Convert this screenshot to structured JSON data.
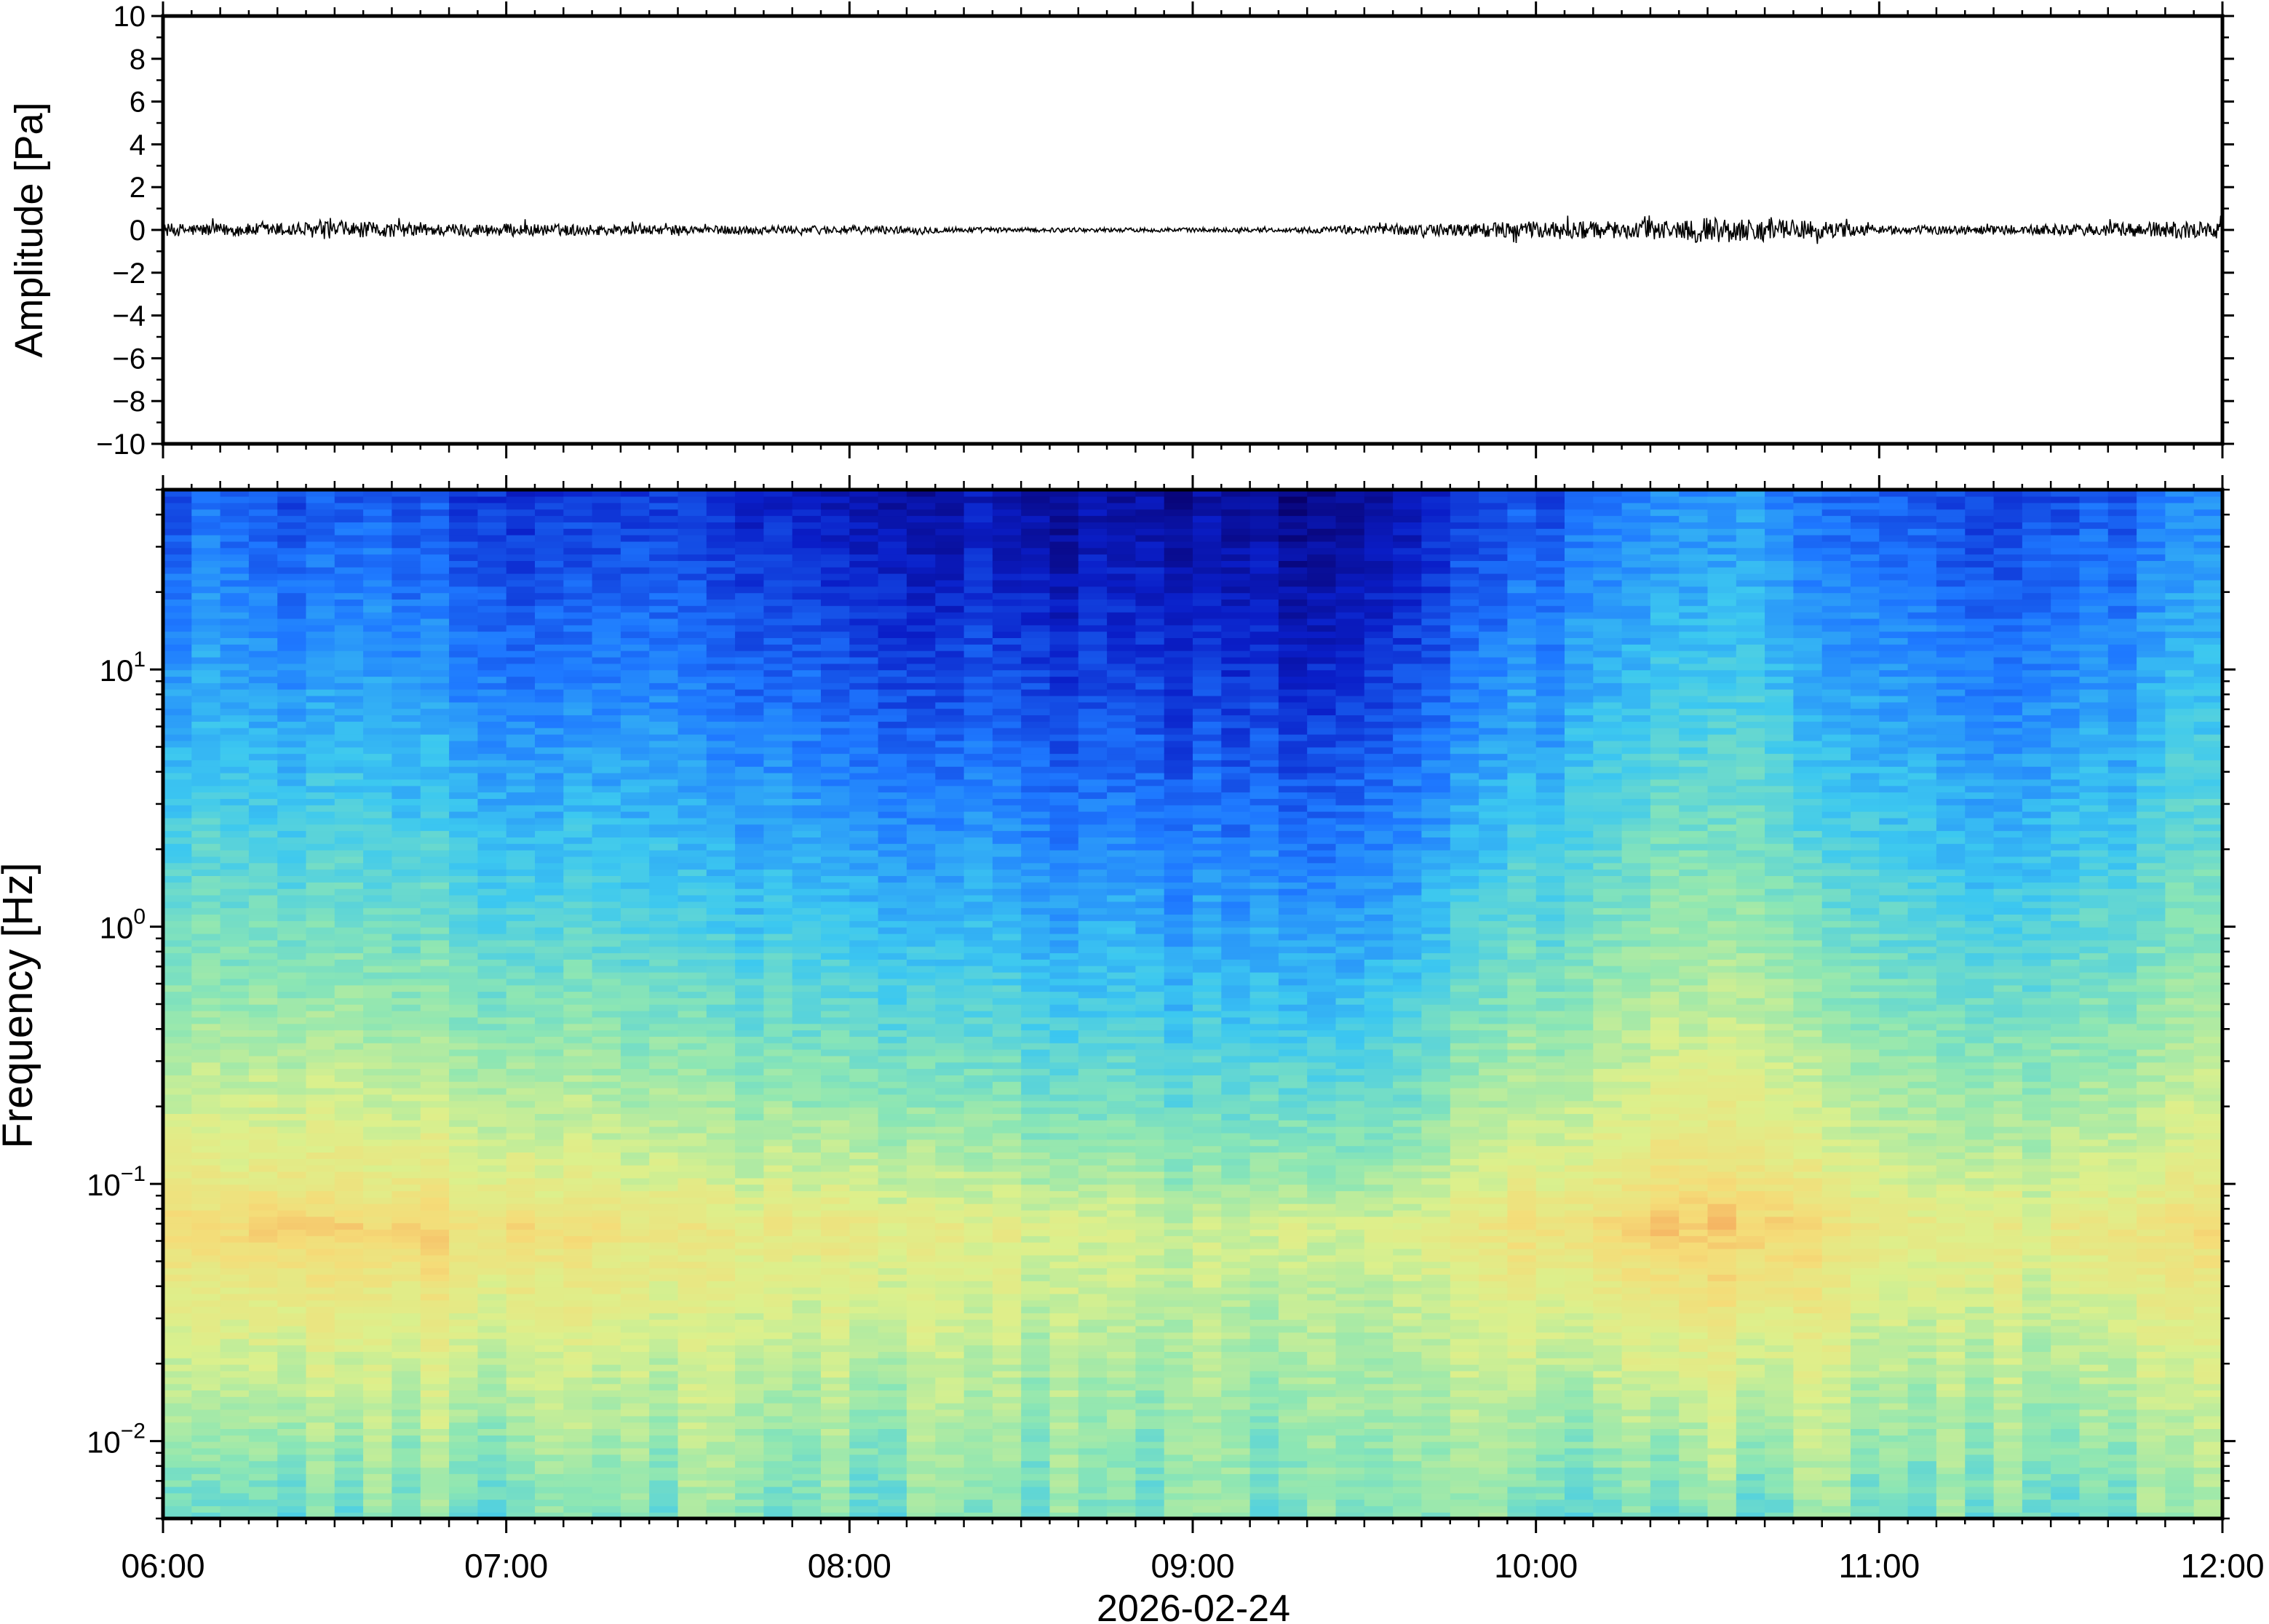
{
  "chart_data": [
    {
      "type": "line",
      "panel": "waveform",
      "ylabel": "Amplitude [Pa]",
      "ylim": [
        -10,
        10
      ],
      "y_ticks": [
        10,
        8,
        6,
        4,
        2,
        0,
        -2,
        -4,
        -6,
        -8,
        -10
      ],
      "y_tick_labels": [
        "10",
        "8",
        "6",
        "4",
        "2",
        "0",
        "−2",
        "−4",
        "−6",
        "−8",
        "−10"
      ],
      "x_range": [
        "06:00",
        "12:00"
      ],
      "series": [
        {
          "color": "#000000",
          "envelope_minutes": [
            0,
            15,
            30,
            45,
            60,
            75,
            90,
            105,
            120,
            135,
            150,
            165,
            180,
            195,
            210,
            225,
            240,
            255,
            270,
            285,
            300,
            315,
            330,
            345,
            360
          ],
          "envelope_amplitude_pa": [
            0.3,
            0.3,
            0.4,
            0.3,
            0.3,
            0.25,
            0.2,
            0.2,
            0.2,
            0.15,
            0.1,
            0.1,
            0.1,
            0.1,
            0.2,
            0.3,
            0.4,
            0.4,
            0.6,
            0.5,
            0.2,
            0.2,
            0.25,
            0.35,
            0.45
          ]
        }
      ]
    },
    {
      "type": "heatmap",
      "panel": "spectrogram",
      "ylabel": "Frequency [Hz]",
      "xlabel": "2026‑02‑24",
      "y_scale": "log",
      "ylim": [
        0.005,
        50
      ],
      "y_ticks": [
        {
          "value": 10,
          "base": "10",
          "exp": "1"
        },
        {
          "value": 1,
          "base": "10",
          "exp": "0"
        },
        {
          "value": 0.1,
          "base": "10",
          "exp": "−1"
        },
        {
          "value": 0.01,
          "base": "10",
          "exp": "−2"
        }
      ],
      "x_ticks": [
        "06:00",
        "07:00",
        "08:00",
        "09:00",
        "10:00",
        "11:00",
        "12:00"
      ],
      "colormap": "jet",
      "colormap_stops": [
        "#08006a",
        "#0a1ec8",
        "#1e78ff",
        "#3cc8f0",
        "#8ce6b4",
        "#dcf08c",
        "#f5dc78",
        "#f59b55",
        "#e6502d"
      ],
      "time_columns_minutes": [
        0,
        30,
        60,
        90,
        120,
        150,
        180,
        210,
        240,
        270,
        300,
        330,
        360
      ],
      "high_freq_intensity": [
        0.22,
        0.2,
        0.16,
        0.14,
        0.1,
        0.08,
        0.05,
        0.04,
        0.2,
        0.3,
        0.2,
        0.16,
        0.3
      ],
      "peak_freq_hz": 0.07,
      "peak_intensity": [
        0.74,
        0.76,
        0.74,
        0.7,
        0.68,
        0.65,
        0.6,
        0.62,
        0.72,
        0.82,
        0.7,
        0.66,
        0.76
      ]
    }
  ]
}
